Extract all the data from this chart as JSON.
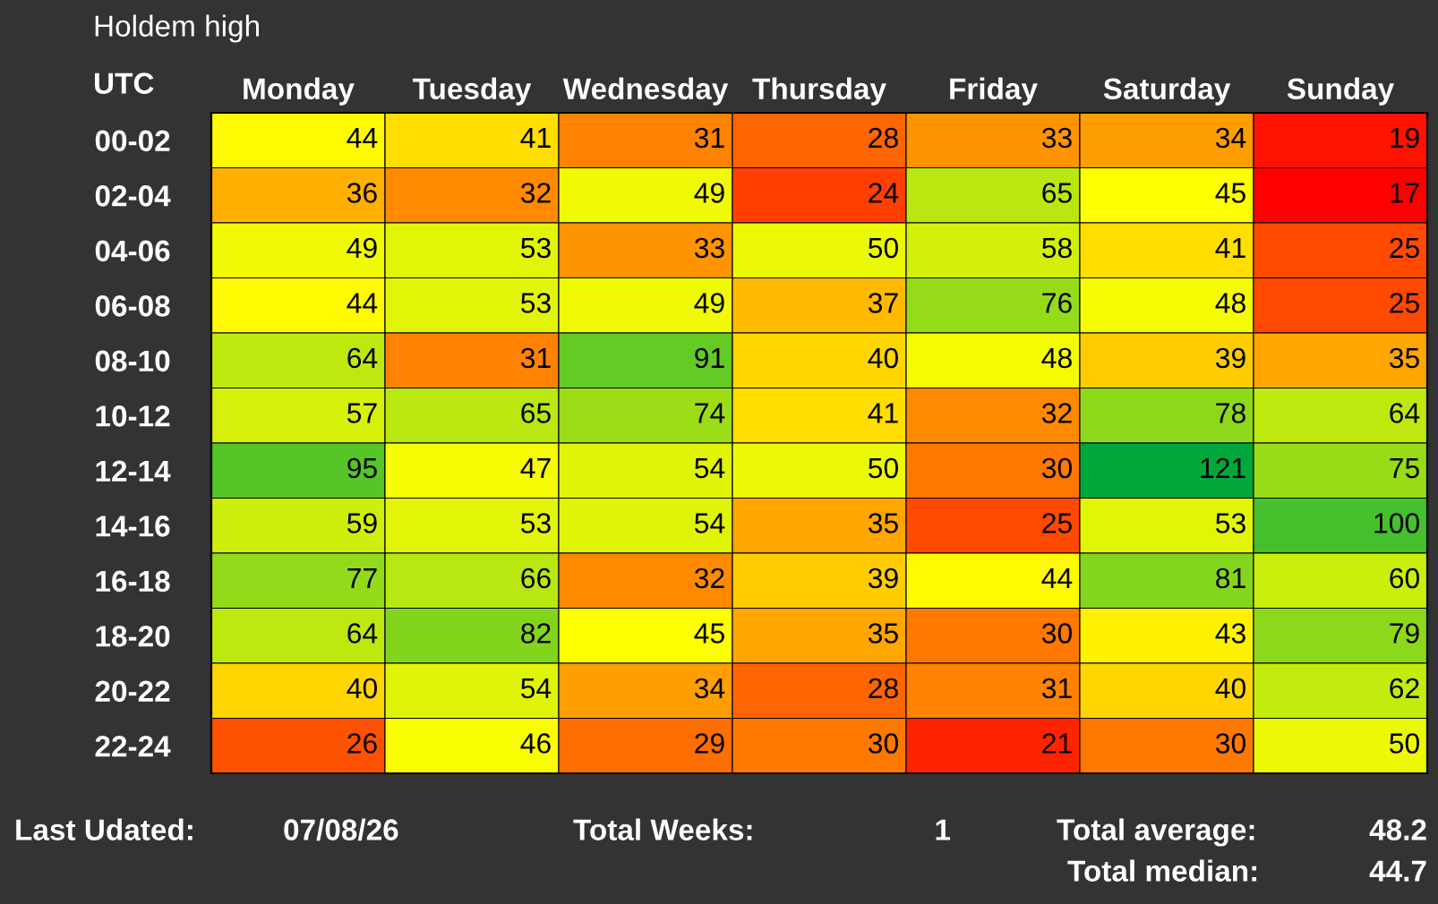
{
  "chart_data": {
    "type": "heatmap",
    "title": "Holdem high",
    "ylabel": "UTC",
    "categories": [
      "Monday",
      "Tuesday",
      "Wednesday",
      "Thursday",
      "Friday",
      "Saturday",
      "Sunday"
    ],
    "y_categories": [
      "00-02",
      "02-04",
      "04-06",
      "06-08",
      "08-10",
      "10-12",
      "12-14",
      "14-16",
      "16-18",
      "18-20",
      "20-22",
      "22-24"
    ],
    "cells": [
      [
        44,
        41,
        31,
        28,
        33,
        34,
        19
      ],
      [
        36,
        32,
        49,
        24,
        65,
        45,
        17
      ],
      [
        49,
        53,
        33,
        50,
        58,
        41,
        25
      ],
      [
        44,
        53,
        49,
        37,
        76,
        48,
        25
      ],
      [
        64,
        31,
        91,
        40,
        48,
        39,
        35
      ],
      [
        57,
        65,
        74,
        41,
        32,
        78,
        64
      ],
      [
        95,
        47,
        54,
        50,
        30,
        121,
        75
      ],
      [
        59,
        53,
        54,
        35,
        25,
        53,
        100
      ],
      [
        77,
        66,
        32,
        39,
        44,
        81,
        60
      ],
      [
        64,
        82,
        45,
        35,
        30,
        43,
        79
      ],
      [
        40,
        54,
        34,
        28,
        31,
        40,
        62
      ],
      [
        26,
        46,
        29,
        30,
        21,
        30,
        50
      ]
    ],
    "data_labels": true,
    "annotations": [
      "Last Udated:",
      "07/08/26",
      "Total Weeks:",
      "1",
      "Total average:",
      "48.2",
      "Total median:",
      "44.7"
    ]
  }
}
